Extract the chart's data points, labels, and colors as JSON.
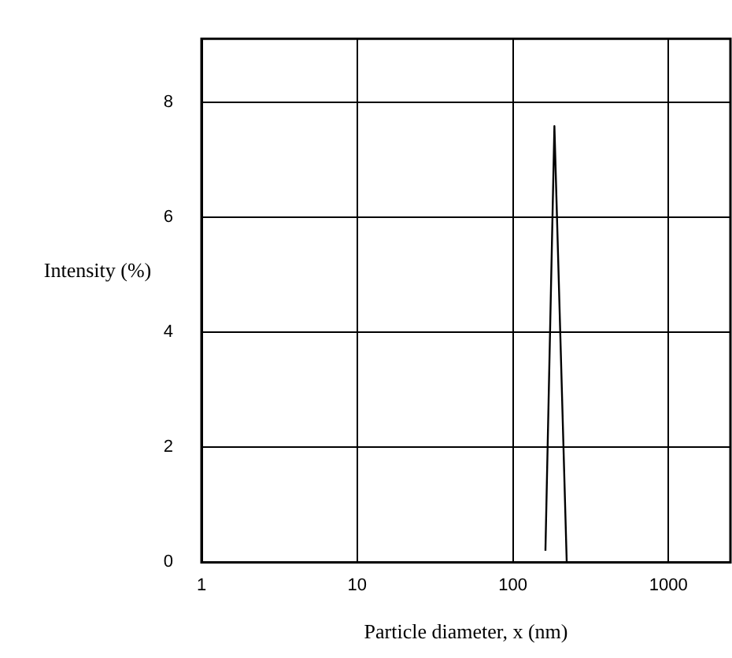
{
  "chart_data": {
    "type": "line",
    "xlabel": "Particle diameter, x (nm)",
    "ylabel": "Intensity (%)",
    "log": "x",
    "xlim": [
      1,
      2500
    ],
    "xticks": [
      1,
      10,
      100,
      1000
    ],
    "ylim": [
      0,
      9.1
    ],
    "yticks": [
      0,
      2,
      4,
      6,
      8
    ],
    "grid": true,
    "marker": "none",
    "line_style": "solid",
    "series": [
      {
        "color": "#000000",
        "x": [
          162,
          185,
          222
        ],
        "values": [
          0.2,
          7.58,
          0
        ]
      }
    ]
  }
}
